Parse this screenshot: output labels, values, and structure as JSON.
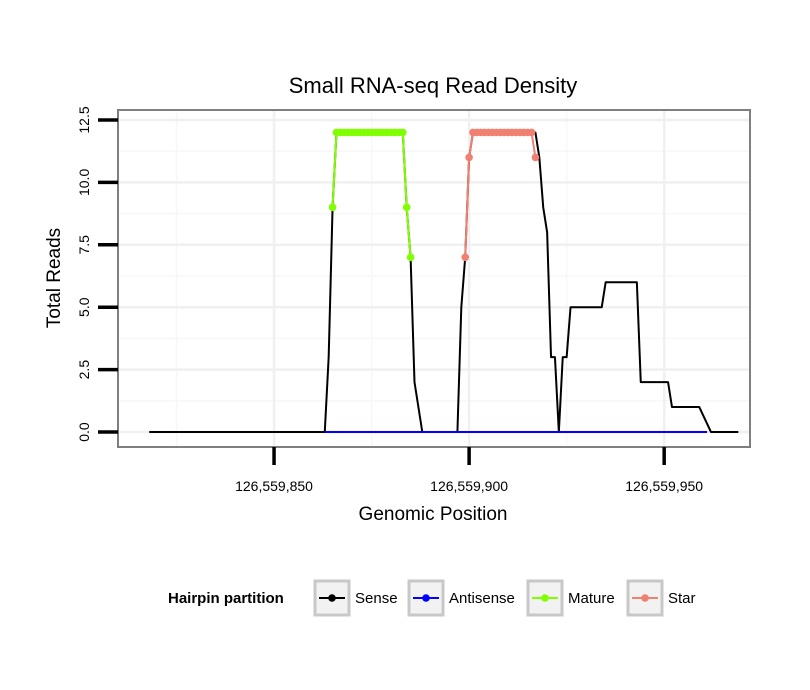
{
  "chart_data": {
    "type": "line",
    "title": "Small RNA-seq Read Density",
    "xlabel": "Genomic Position",
    "ylabel": "Total Reads",
    "xlim": [
      126559810,
      126559972
    ],
    "ylim": [
      -0.6,
      12.9
    ],
    "x_ticks": [
      126559850,
      126559900,
      126559950
    ],
    "x_tick_labels": [
      "126,559,850",
      "126,559,900",
      "126,559,950"
    ],
    "y_ticks": [
      0,
      2.5,
      5,
      7.5,
      10,
      12.5
    ],
    "y_tick_labels": [
      "0.0",
      "2.5",
      "5.0",
      "7.5",
      "10.0",
      "12.5"
    ],
    "grid": true,
    "legend": {
      "title": "Hairpin partition",
      "position": "bottom",
      "entries": [
        {
          "label": "Sense",
          "color": "#000000"
        },
        {
          "label": "Antisense",
          "color": "#0000ff"
        },
        {
          "label": "Mature",
          "color": "#7fff00"
        },
        {
          "label": "Star",
          "color": "#f08070"
        }
      ]
    },
    "series": [
      {
        "name": "Sense",
        "color": "#000000",
        "x": [
          126559818,
          126559863,
          126559864,
          126559865,
          126559866,
          126559883,
          126559884,
          126559885,
          126559886,
          126559888,
          126559897,
          126559898,
          126559899,
          126559900,
          126559901,
          126559917,
          126559918,
          126559919,
          126559920,
          126559921,
          126559922,
          126559923,
          126559924,
          126559925,
          126559926,
          126559927,
          126559934,
          126559935,
          126559943,
          126559944,
          126559951,
          126559952,
          126559958,
          126559959,
          126559962,
          126559969
        ],
        "y": [
          0,
          0,
          3,
          9,
          12,
          12,
          9,
          7,
          2,
          0,
          0,
          5,
          7,
          11,
          12,
          12,
          11,
          9,
          8,
          3,
          3,
          0,
          3,
          3,
          5,
          5,
          5,
          6,
          6,
          2,
          2,
          1,
          1,
          1,
          0,
          0
        ]
      },
      {
        "name": "Antisense",
        "color": "#0000ff",
        "x": [
          126559863,
          126559961
        ],
        "y": [
          0,
          0
        ]
      },
      {
        "name": "Mature",
        "color": "#7fff00",
        "x": [
          126559865,
          126559866,
          126559867,
          126559868,
          126559869,
          126559870,
          126559871,
          126559872,
          126559873,
          126559874,
          126559875,
          126559876,
          126559877,
          126559878,
          126559879,
          126559880,
          126559881,
          126559882,
          126559883,
          126559884,
          126559885
        ],
        "y": [
          9,
          12,
          12,
          12,
          12,
          12,
          12,
          12,
          12,
          12,
          12,
          12,
          12,
          12,
          12,
          12,
          12,
          12,
          12,
          9,
          7
        ]
      },
      {
        "name": "Star",
        "color": "#f08070",
        "x": [
          126559899,
          126559900,
          126559901,
          126559902,
          126559903,
          126559904,
          126559905,
          126559906,
          126559907,
          126559908,
          126559909,
          126559910,
          126559911,
          126559912,
          126559913,
          126559914,
          126559915,
          126559916,
          126559917
        ],
        "y": [
          7,
          11,
          12,
          12,
          12,
          12,
          12,
          12,
          12,
          12,
          12,
          12,
          12,
          12,
          12,
          12,
          12,
          12,
          11
        ]
      }
    ]
  }
}
